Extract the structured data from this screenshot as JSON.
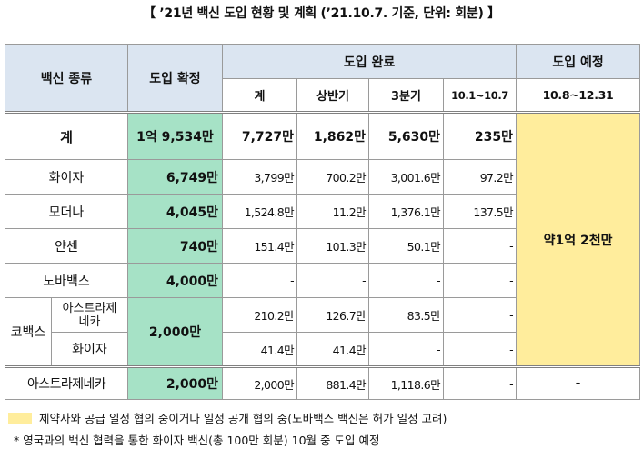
{
  "title": "【 ’21년 백신 도입 현황 및 계획 (’21.10.7. 기준, 단위: 회분) 】",
  "headers": {
    "vaccine_type": "백신 종류",
    "confirmed": "도입 확정",
    "completed": "도입 완료",
    "planned": "도입 예정",
    "sub_total": "계",
    "sub_h1": "상반기",
    "sub_q3": "3분기",
    "sub_oct": "10.1~10.7",
    "sub_plan": "10.8~12.31"
  },
  "rows": {
    "total": {
      "name": "계",
      "confirmed": "1억 9,534만",
      "total": "7,727만",
      "h1": "1,862만",
      "q3": "5,630만",
      "oct": "235만"
    },
    "pfizer": {
      "name": "화이자",
      "confirmed": "6,749만",
      "total": "3,799만",
      "h1": "700.2만",
      "q3": "3,001.6만",
      "oct": "97.2만"
    },
    "moderna": {
      "name": "모더나",
      "confirmed": "4,045만",
      "total": "1,524.8만",
      "h1": "11.2만",
      "q3": "1,376.1만",
      "oct": "137.5만"
    },
    "janssen": {
      "name": "얀센",
      "confirmed": "740만",
      "total": "151.4만",
      "h1": "101.3만",
      "q3": "50.1만",
      "oct": "-"
    },
    "novavax": {
      "name": "노바백스",
      "confirmed": "4,000만",
      "total": "-",
      "h1": "-",
      "q3": "-",
      "oct": "-"
    },
    "covax": {
      "group": "코백스",
      "confirmed": "2,000만",
      "az": {
        "name": "아스트라제\n네카",
        "total": "210.2만",
        "h1": "126.7만",
        "q3": "83.5만",
        "oct": "-"
      },
      "pfizer": {
        "name": "화이자",
        "total": "41.4만",
        "h1": "41.4만",
        "q3": "-",
        "oct": "-"
      }
    },
    "az": {
      "name": "아스트라제네카",
      "confirmed": "2,000만",
      "total": "2,000만",
      "h1": "881.4만",
      "q3": "1,118.6만",
      "oct": "-",
      "plan": "-"
    }
  },
  "planned_value": "약1억 2천만",
  "legend_text": "제약사와 공급 일정 협의 중이거나 일정 공개 협의 중(노바백스 백신은 허가 일정 고려)",
  "footnote": "*   영국과의 백신 협력을 통한 화이자 백신(총 100만 회분) 10월 중 도입 예정",
  "colors": {
    "header_bg": "#dbe5f1",
    "confirmed_bg": "#a6e2c6",
    "planned_bg": "#ffed9c"
  }
}
